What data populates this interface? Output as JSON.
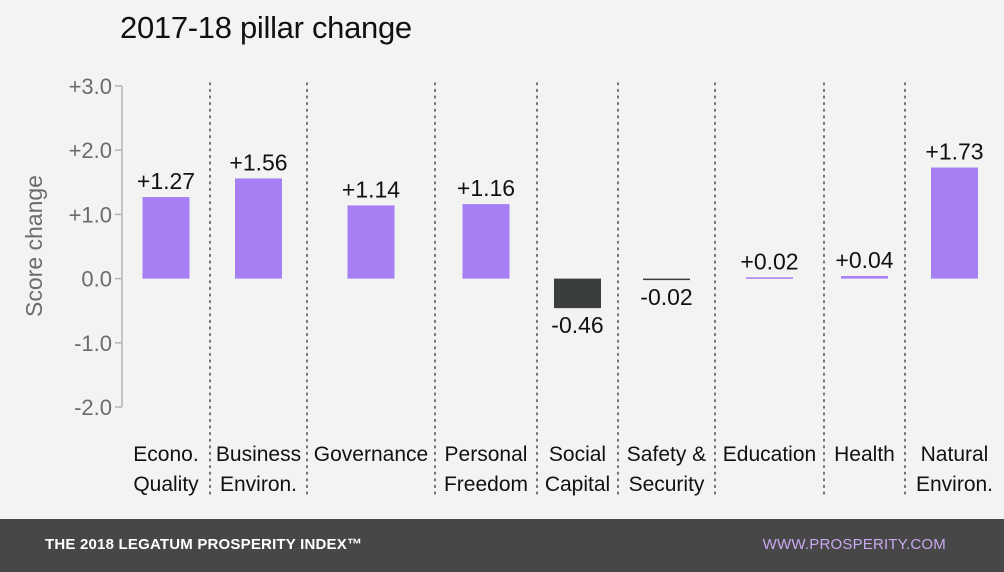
{
  "chart_data": {
    "type": "bar",
    "title": "2017-18 pillar change",
    "ylabel": "Score change",
    "xlabel": "",
    "ylim": [
      -2.0,
      3.0
    ],
    "yticks": [
      "+3.0",
      "+2.0",
      "+1.0",
      "0.0",
      "-1.0",
      "-2.0"
    ],
    "ytick_values": [
      3,
      2,
      1,
      0,
      -1,
      -2
    ],
    "categories": [
      [
        "Econo.",
        "Quality"
      ],
      [
        "Business",
        "Environ."
      ],
      [
        "Governance"
      ],
      [
        "Personal",
        "Freedom"
      ],
      [
        "Social",
        "Capital"
      ],
      [
        "Safety &",
        "Security"
      ],
      [
        "Education"
      ],
      [
        "Health"
      ],
      [
        "Natural",
        "Environ."
      ]
    ],
    "values": [
      1.27,
      1.56,
      1.14,
      1.16,
      -0.46,
      -0.02,
      0.02,
      0.04,
      1.73
    ],
    "labels": [
      "+1.27",
      "+1.56",
      "+1.14",
      "+1.16",
      "-0.46",
      "-0.02",
      "+0.02",
      "+0.04",
      "+1.73"
    ],
    "colors": {
      "positive": "#a57ff3",
      "negative": "#3a3e3e",
      "axis": "#b3b3b3",
      "divider": "#555555"
    }
  },
  "footer": {
    "left": "THE 2018 LEGATUM PROSPERITY INDEX™",
    "right": "WWW.PROSPERITY.COM"
  }
}
